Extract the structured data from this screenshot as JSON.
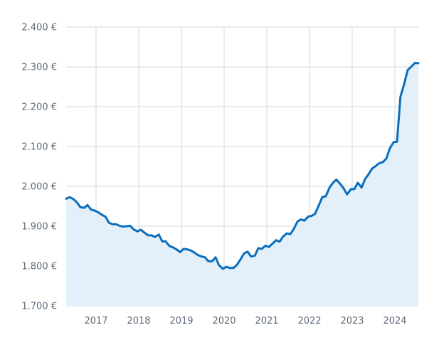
{
  "chart_data": {
    "type": "area",
    "title": "",
    "xlabel": "",
    "ylabel": "",
    "colors": {
      "line": "#0a6ebd",
      "fill": "#e3f0f9",
      "grid": "#d3d7dc",
      "tick_text": "#5f6b7a"
    },
    "grid": true,
    "legend": "none",
    "xlim": [
      2016.3,
      2024.55
    ],
    "ylim": [
      1700,
      2400
    ],
    "x_ticks": [
      {
        "value": 2017,
        "label": "2017"
      },
      {
        "value": 2018,
        "label": "2018"
      },
      {
        "value": 2019,
        "label": "2019"
      },
      {
        "value": 2020,
        "label": "2020"
      },
      {
        "value": 2021,
        "label": "2021"
      },
      {
        "value": 2022,
        "label": "2022"
      },
      {
        "value": 2023,
        "label": "2023"
      },
      {
        "value": 2024,
        "label": "2024"
      }
    ],
    "y_ticks": [
      {
        "value": 1700,
        "label": "1.700 €"
      },
      {
        "value": 1800,
        "label": "1.800 €"
      },
      {
        "value": 1900,
        "label": "1.900 €"
      },
      {
        "value": 2000,
        "label": "2.000 €"
      },
      {
        "value": 2100,
        "label": "2.100 €"
      },
      {
        "value": 2200,
        "label": "2.200 €"
      },
      {
        "value": 2300,
        "label": "2.300 €"
      },
      {
        "value": 2400,
        "label": "2.400 €"
      }
    ],
    "series": [
      {
        "x": [
          2016.3,
          2016.38,
          2016.47,
          2016.55,
          2016.63,
          2016.72,
          2016.8,
          2016.88,
          2016.97,
          2017.05,
          2017.13,
          2017.22,
          2017.3,
          2017.38,
          2017.47,
          2017.55,
          2017.63,
          2017.72,
          2017.8,
          2017.88,
          2017.97,
          2018.05,
          2018.13,
          2018.22,
          2018.3,
          2018.38,
          2018.47,
          2018.55,
          2018.63,
          2018.72,
          2018.8,
          2018.88,
          2018.97,
          2019.05,
          2019.13,
          2019.22,
          2019.3,
          2019.38,
          2019.47,
          2019.55,
          2019.63,
          2019.72,
          2019.8,
          2019.88,
          2019.97,
          2020.05,
          2020.13,
          2020.22,
          2020.3,
          2020.38,
          2020.47,
          2020.55,
          2020.63,
          2020.72,
          2020.8,
          2020.88,
          2020.97,
          2021.05,
          2021.13,
          2021.22,
          2021.3,
          2021.38,
          2021.47,
          2021.55,
          2021.63,
          2021.72,
          2021.8,
          2021.88,
          2021.97,
          2022.05,
          2022.13,
          2022.22,
          2022.3,
          2022.38,
          2022.47,
          2022.55,
          2022.63,
          2022.72,
          2022.8,
          2022.88,
          2022.97,
          2023.05,
          2023.13,
          2023.22,
          2023.3,
          2023.38,
          2023.47,
          2023.55,
          2023.63,
          2023.72,
          2023.8,
          2023.88,
          2023.97,
          2024.05,
          2024.13,
          2024.22,
          2024.3,
          2024.38,
          2024.47,
          2024.55
        ],
        "values": [
          1969,
          1973,
          1968,
          1960,
          1948,
          1946,
          1953,
          1942,
          1939,
          1935,
          1929,
          1924,
          1909,
          1905,
          1905,
          1901,
          1899,
          1900,
          1901,
          1892,
          1887,
          1891,
          1884,
          1877,
          1877,
          1873,
          1879,
          1862,
          1862,
          1850,
          1847,
          1842,
          1835,
          1843,
          1842,
          1839,
          1834,
          1828,
          1824,
          1822,
          1812,
          1812,
          1822,
          1802,
          1793,
          1798,
          1795,
          1795,
          1803,
          1816,
          1832,
          1836,
          1824,
          1826,
          1845,
          1843,
          1851,
          1848,
          1856,
          1865,
          1861,
          1874,
          1882,
          1880,
          1893,
          1912,
          1917,
          1914,
          1924,
          1926,
          1931,
          1953,
          1973,
          1975,
          1997,
          2009,
          2017,
          2006,
          1995,
          1980,
          1993,
          1993,
          2009,
          1997,
          2018,
          2030,
          2045,
          2051,
          2058,
          2061,
          2070,
          2095,
          2111,
          2112,
          2225,
          2258,
          2292,
          2300,
          2310,
          2309
        ]
      }
    ]
  }
}
